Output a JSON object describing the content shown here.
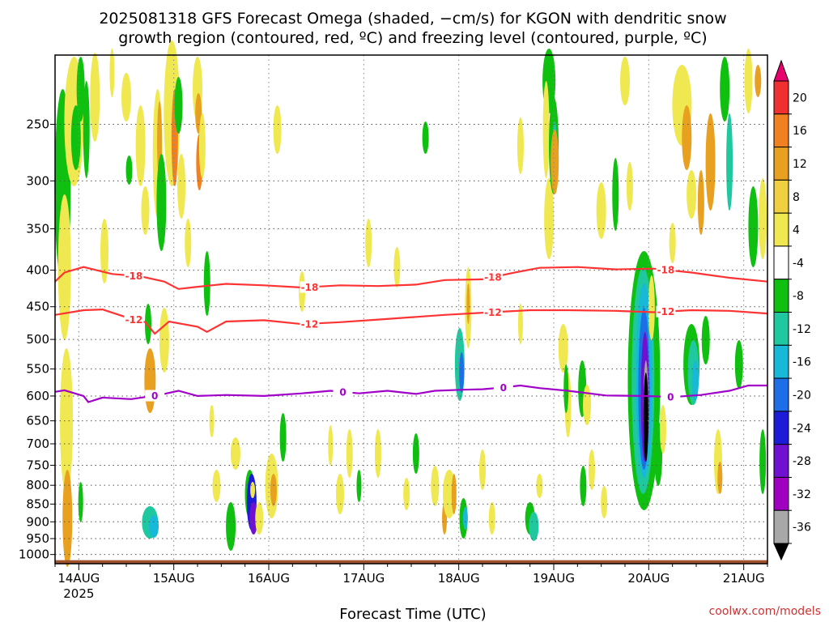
{
  "title_line1": "2025081318 GFS Forecast Omega (shaded, −cm/s) for KGON with dendritic snow",
  "title_line2": "growth region (contoured, red, ºC) and freezing level (contoured, purple, ºC)",
  "credit": "coolwx.com/models",
  "chart_data": {
    "type": "heatmap",
    "title": "2025081318 GFS Forecast Omega (shaded, −cm/s) for KGON with dendritic snow growth region (contoured, red, ºC) and freezing level (contoured, purple, ºC)",
    "xlabel": "Forecast Time (UTC)",
    "ylabel": "",
    "x_ticks": [
      {
        "t": 0.25,
        "label": "14AUG",
        "sub": "2025"
      },
      {
        "t": 1.25,
        "label": "15AUG"
      },
      {
        "t": 2.25,
        "label": "16AUG"
      },
      {
        "t": 3.25,
        "label": "17AUG"
      },
      {
        "t": 4.25,
        "label": "18AUG"
      },
      {
        "t": 5.25,
        "label": "19AUG"
      },
      {
        "t": 6.25,
        "label": "20AUG"
      },
      {
        "t": 7.25,
        "label": "21AUG"
      }
    ],
    "xlim": [
      0,
      7.5
    ],
    "y_scale": "log",
    "y_axis_reversed": true,
    "ylim": [
      1030,
      200
    ],
    "y_ticks": [
      250,
      300,
      350,
      400,
      450,
      500,
      550,
      600,
      650,
      700,
      750,
      800,
      850,
      900,
      950,
      1000
    ],
    "grid": true,
    "colorbar": {
      "levels": [
        20,
        16,
        12,
        8,
        4,
        -4,
        -8,
        -12,
        -16,
        -20,
        -24,
        -28,
        -32,
        -36
      ],
      "colors": [
        "#e8006e",
        "#f03030",
        "#f08020",
        "#e8a020",
        "#f0d040",
        "#f0e850",
        "#ffffff",
        "#10c010",
        "#20c8a0",
        "#18b8d8",
        "#1e6ee8",
        "#1c1cd8",
        "#7010d0",
        "#a000c0",
        "#a8a8a8",
        "#000000"
      ]
    },
    "series": [
      {
        "name": "-18",
        "color": "#ff3333",
        "points": [
          [
            0,
            415
          ],
          [
            0.1,
            403
          ],
          [
            0.3,
            396
          ],
          [
            0.6,
            405
          ],
          [
            0.9,
            408
          ],
          [
            1.15,
            415
          ],
          [
            1.3,
            425
          ],
          [
            1.5,
            422
          ],
          [
            1.8,
            418
          ],
          [
            2.2,
            420
          ],
          [
            2.6,
            423
          ],
          [
            3.0,
            420
          ],
          [
            3.4,
            421
          ],
          [
            3.8,
            419
          ],
          [
            4.1,
            413
          ],
          [
            4.5,
            412
          ],
          [
            4.8,
            404
          ],
          [
            5.1,
            397
          ],
          [
            5.5,
            396
          ],
          [
            5.9,
            399
          ],
          [
            6.3,
            398
          ],
          [
            6.7,
            403
          ],
          [
            7.1,
            410
          ],
          [
            7.5,
            415
          ]
        ],
        "labels": [
          0.83,
          2.68,
          4.61,
          6.43
        ]
      },
      {
        "name": "-12",
        "color": "#ff3333",
        "points": [
          [
            0,
            462
          ],
          [
            0.3,
            455
          ],
          [
            0.5,
            454
          ],
          [
            0.8,
            468
          ],
          [
            0.95,
            473
          ],
          [
            1.05,
            491
          ],
          [
            1.2,
            472
          ],
          [
            1.5,
            480
          ],
          [
            1.6,
            488
          ],
          [
            1.8,
            472
          ],
          [
            2.2,
            470
          ],
          [
            2.6,
            476
          ],
          [
            3.0,
            473
          ],
          [
            3.4,
            469
          ],
          [
            3.8,
            465
          ],
          [
            4.1,
            462
          ],
          [
            4.6,
            458
          ],
          [
            5.0,
            455
          ],
          [
            5.4,
            455
          ],
          [
            5.9,
            456
          ],
          [
            6.3,
            458
          ],
          [
            6.7,
            455
          ],
          [
            7.1,
            456
          ],
          [
            7.5,
            460
          ]
        ],
        "labels": [
          0.83,
          2.68,
          4.61,
          6.43
        ]
      },
      {
        "name": "0",
        "color": "#a000c8",
        "points": [
          [
            0,
            592
          ],
          [
            0.1,
            589
          ],
          [
            0.3,
            600
          ],
          [
            0.35,
            612
          ],
          [
            0.5,
            603
          ],
          [
            0.8,
            606
          ],
          [
            1.1,
            598
          ],
          [
            1.3,
            590
          ],
          [
            1.5,
            600
          ],
          [
            1.8,
            598
          ],
          [
            2.2,
            600
          ],
          [
            2.6,
            595
          ],
          [
            2.9,
            590
          ],
          [
            3.2,
            595
          ],
          [
            3.5,
            590
          ],
          [
            3.8,
            596
          ],
          [
            4.0,
            590
          ],
          [
            4.3,
            588
          ],
          [
            4.5,
            587
          ],
          [
            4.7,
            584
          ],
          [
            4.9,
            580
          ],
          [
            5.1,
            585
          ],
          [
            5.4,
            590
          ],
          [
            5.8,
            599
          ],
          [
            6.2,
            600
          ],
          [
            6.5,
            602
          ],
          [
            6.8,
            598
          ],
          [
            7.1,
            590
          ],
          [
            7.3,
            580
          ],
          [
            7.5,
            580
          ]
        ],
        "labels": [
          1.05,
          3.03,
          4.72,
          6.48
        ]
      }
    ]
  }
}
